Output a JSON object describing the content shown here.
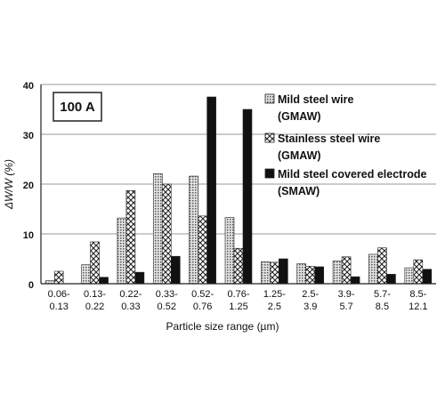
{
  "chart_data": {
    "type": "bar",
    "annotation": "100 A",
    "xlabel": "Particle size range (µm)",
    "ylabel": "ΔW/W (%)",
    "ylim": [
      0,
      40
    ],
    "yticks": [
      0,
      10,
      20,
      30,
      40
    ],
    "grid": "horizontal",
    "legend_position": "top-right",
    "categories": [
      [
        "0.06-",
        "0.13"
      ],
      [
        "0.13-",
        "0.22"
      ],
      [
        "0.22-",
        "0.33"
      ],
      [
        "0.33-",
        "0.52"
      ],
      [
        "0.52-",
        "0.76"
      ],
      [
        "0.76-",
        "1.25"
      ],
      [
        "1.25-",
        "2.5"
      ],
      [
        "2.5-",
        "3.9"
      ],
      [
        "3.9-",
        "5.7"
      ],
      [
        "5.7-",
        "8.5"
      ],
      [
        "8.5-",
        "12.1"
      ]
    ],
    "series": [
      {
        "name": [
          "Mild steel wire",
          "(GMAW)"
        ],
        "pattern": "dots",
        "values": [
          0.6,
          3.8,
          13.2,
          22.1,
          21.6,
          13.3,
          4.4,
          4.0,
          4.6,
          5.9,
          3.2
        ]
      },
      {
        "name": [
          "Stainless steel wire",
          "(GMAW)"
        ],
        "pattern": "crosshatch",
        "values": [
          2.5,
          8.4,
          18.7,
          20.0,
          13.6,
          7.1,
          4.3,
          3.5,
          5.4,
          7.2,
          4.8
        ]
      },
      {
        "name": [
          "Mild steel covered electrode",
          "(SMAW)"
        ],
        "pattern": "solid",
        "values": [
          0.0,
          1.3,
          2.3,
          5.5,
          37.5,
          35.0,
          5.0,
          3.4,
          1.4,
          1.9,
          2.9
        ]
      }
    ],
    "colors": {
      "solid": "#111111",
      "grid": "#9a9a9a",
      "axis": "#222222"
    }
  }
}
